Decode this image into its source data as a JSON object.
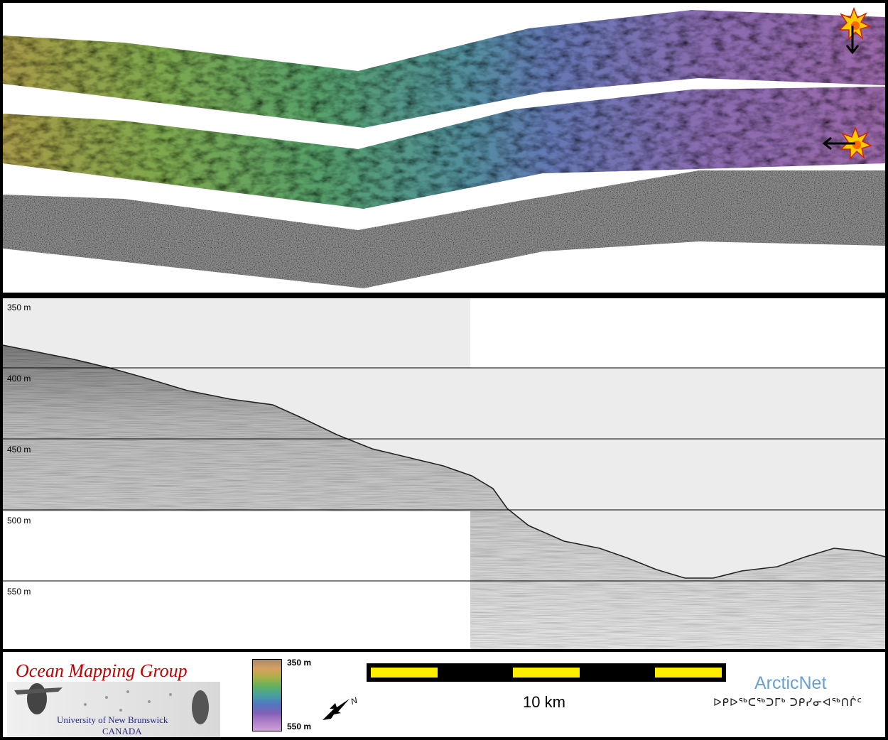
{
  "profile": {
    "depth_labels": [
      "350 m",
      "400 m",
      "450 m",
      "500 m",
      "550 m"
    ]
  },
  "legend": {
    "omg": {
      "title": "Ocean Mapping Group",
      "university": "University of New Brunswick",
      "country": "CANADA"
    },
    "colorbar": {
      "top": "350 m",
      "bottom": "550 m"
    },
    "north_label": "N",
    "scale": {
      "label": "10 km"
    },
    "arcticnet": {
      "name": "ArcticNet",
      "syllabics": "ᐅᑭᐅᖅᑕᖅᑐᒥᒃ ᑐᑭᓯᓂᐊᖅᑎᒌᑦ"
    }
  },
  "colors": {
    "swath_gradient": [
      "#a89a48",
      "#7ea84e",
      "#56a06a",
      "#52909c",
      "#6478b4",
      "#8a6cb0",
      "#9a68a8"
    ],
    "scale_yellow": "#ffee00",
    "sun": "#ffcc00"
  },
  "icons": [
    "sun-icon",
    "arrow-down-icon",
    "arrow-left-icon",
    "north-arrow-icon"
  ]
}
